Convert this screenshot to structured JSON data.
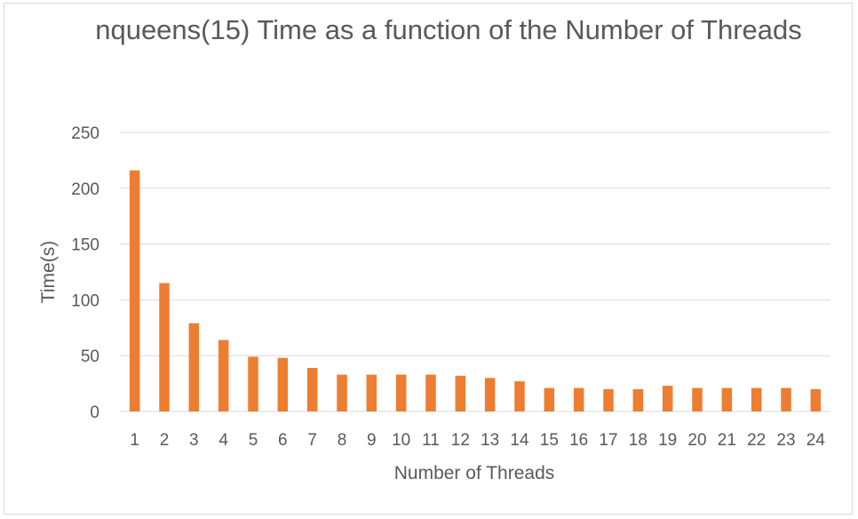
{
  "chart_data": {
    "type": "bar",
    "title": "nqueens(15) Time as a function of the Number of Threads",
    "xlabel": "Number of Threads",
    "ylabel": "Time(s)",
    "categories": [
      "1",
      "2",
      "3",
      "4",
      "5",
      "6",
      "7",
      "8",
      "9",
      "10",
      "11",
      "12",
      "13",
      "14",
      "15",
      "16",
      "17",
      "18",
      "19",
      "20",
      "21",
      "22",
      "23",
      "24"
    ],
    "values": [
      216,
      115,
      79,
      64,
      49,
      48,
      39,
      33,
      33,
      33,
      33,
      32,
      30,
      27,
      21,
      21,
      20,
      20,
      23,
      21,
      21,
      21,
      21,
      20
    ],
    "ylim": [
      0,
      250
    ],
    "yticks": [
      0,
      50,
      100,
      150,
      200,
      250
    ],
    "grid": true,
    "legend": "none",
    "bar_color": "#ED7D31",
    "grid_color": "#d9d9d9",
    "text_color": "#595959"
  }
}
